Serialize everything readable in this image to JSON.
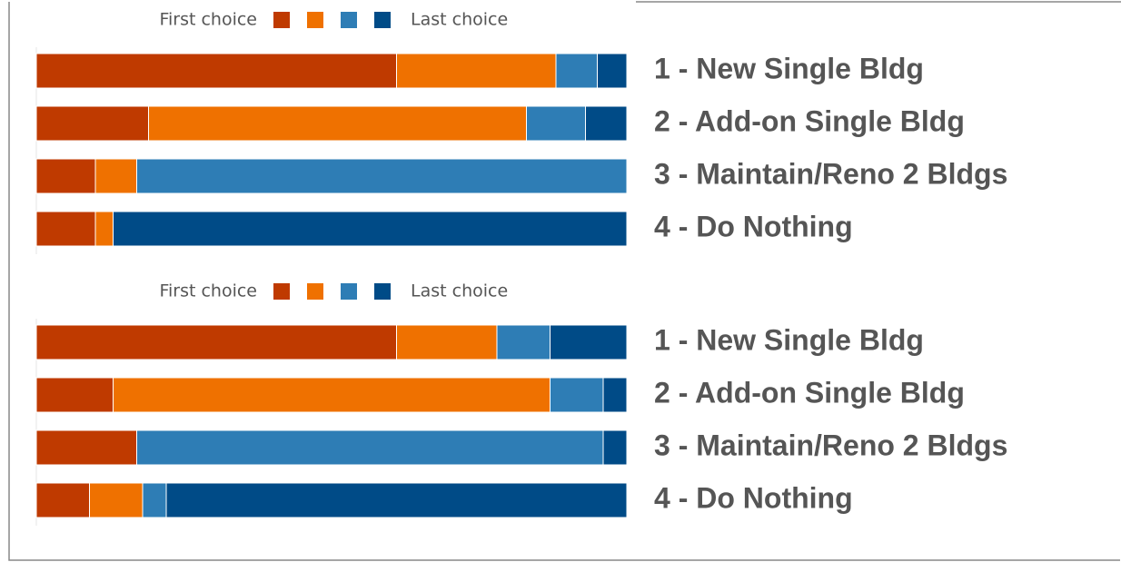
{
  "chart_data": [
    {
      "type": "bar",
      "orientation": "horizontal",
      "stacked": true,
      "legend": {
        "first_label": "First choice",
        "last_label": "Last choice"
      },
      "categories": [
        "1 - New Single Bldg",
        "2 - Add-on Single Bldg",
        "3 - Maintain/Reno 2 Bldgs",
        "4 - Do Nothing"
      ],
      "xlim": [
        0,
        100
      ],
      "series": [
        {
          "color": "#bf3a00",
          "values": [
            61,
            19,
            10,
            10
          ]
        },
        {
          "color": "#ef7100",
          "values": [
            27,
            64,
            7,
            3
          ]
        },
        {
          "color": "#2e7db5",
          "values": [
            7,
            10,
            83,
            0
          ]
        },
        {
          "color": "#004b87",
          "values": [
            5,
            7,
            0,
            87
          ]
        }
      ]
    },
    {
      "type": "bar",
      "orientation": "horizontal",
      "stacked": true,
      "legend": {
        "first_label": "First choice",
        "last_label": "Last choice"
      },
      "categories": [
        "1 - New Single Bldg",
        "2 - Add-on Single Bldg",
        "3 - Maintain/Reno 2 Bldgs",
        "4 - Do Nothing"
      ],
      "xlim": [
        0,
        100
      ],
      "series": [
        {
          "color": "#bf3a00",
          "values": [
            61,
            13,
            17,
            9
          ]
        },
        {
          "color": "#ef7100",
          "values": [
            17,
            74,
            0,
            9
          ]
        },
        {
          "color": "#2e7db5",
          "values": [
            9,
            9,
            79,
            4
          ]
        },
        {
          "color": "#004b87",
          "values": [
            13,
            4,
            4,
            78
          ]
        }
      ]
    }
  ]
}
